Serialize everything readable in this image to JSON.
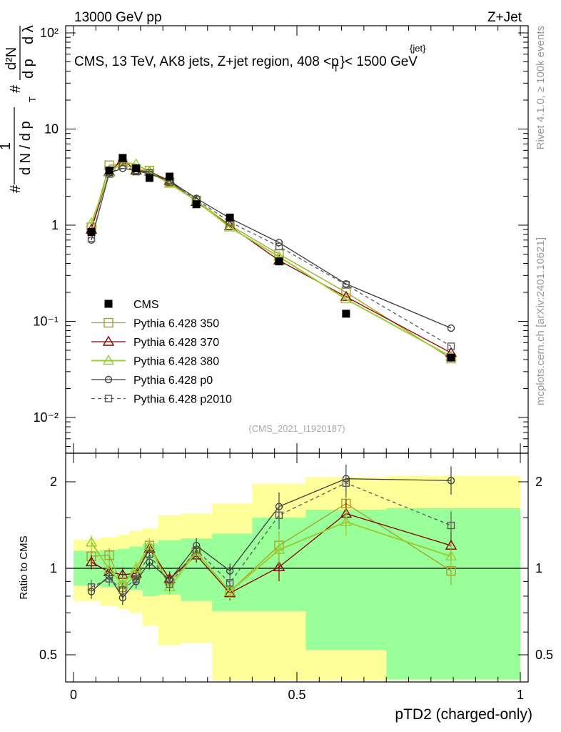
{
  "header": {
    "left": "13000 GeV pp",
    "right": "Z+Jet",
    "title_main": "CMS, 13 TeV, AK8 jets, Z+jet region, 408 <p",
    "title_sup": "{jet}",
    "title_sub": "T",
    "title_tail": "}< 1500 GeV",
    "watermark": "(CMS_2021_I1920187)",
    "side_rivet": "Rivet 4.1.0, ≥ 100k events",
    "side_mcplots": "mcplots.cern.ch [arXiv:2401.10621]"
  },
  "y_main_label": {
    "hash": "#",
    "one": "1",
    "dN": "d N / d p",
    "T": "T",
    "hash2": "#",
    "d2N": "d²N",
    "dpT": "d p",
    "dlambda": "d λ"
  },
  "ratio_label": "Ratio to CMS",
  "x_label": "pTD2 (charged-only)",
  "colors": {
    "cms": "#000000",
    "py350": "#a3a327",
    "py370": "#8b0000",
    "py380": "#9acd32",
    "p0": "#3d3d3d",
    "p2010": "#5a5a5a",
    "band_yellow": "#ffff99",
    "band_green": "#99ff99"
  },
  "legend": [
    {
      "label": "CMS",
      "key": "cms"
    },
    {
      "label": "Pythia 6.428 350",
      "key": "py350"
    },
    {
      "label": "Pythia 6.428 370",
      "key": "py370"
    },
    {
      "label": "Pythia 6.428 380",
      "key": "py380"
    },
    {
      "label": "Pythia 6.428 p0",
      "key": "p0"
    },
    {
      "label": "Pythia 6.428 p2010",
      "key": "p2010"
    }
  ],
  "chart_data": {
    "type": "line",
    "x_label": "pTD2 (charged-only)",
    "xlim": [
      0,
      1
    ],
    "main": {
      "yscale": "log",
      "ylim": [
        0.005,
        130
      ],
      "y_ticks": [
        "10⁻²",
        "10⁻¹",
        "1",
        "10",
        "10²"
      ],
      "x": [
        0.04,
        0.08,
        0.11,
        0.14,
        0.17,
        0.215,
        0.275,
        0.35,
        0.46,
        0.61,
        0.845
      ],
      "series": [
        {
          "name": "CMS",
          "key": "cms",
          "marker": "filled-square",
          "values": [
            0.85,
            3.7,
            5.0,
            3.9,
            3.1,
            3.2,
            1.65,
            1.2,
            0.42,
            0.12,
            0.042
          ]
        },
        {
          "name": "Pythia 6.428 350",
          "key": "py350",
          "marker": "open-square",
          "values": [
            0.95,
            4.2,
            4.3,
            3.8,
            3.7,
            2.8,
            1.8,
            1.0,
            0.5,
            0.2,
            0.041
          ]
        },
        {
          "name": "Pythia 6.428 370",
          "key": "py370",
          "marker": "open-triangle",
          "values": [
            0.9,
            3.6,
            4.8,
            3.7,
            3.6,
            2.9,
            1.75,
            0.98,
            0.43,
            0.18,
            0.047
          ]
        },
        {
          "name": "Pythia 6.428 380",
          "key": "py380",
          "marker": "open-triangle",
          "values": [
            1.05,
            3.5,
            4.5,
            4.3,
            3.6,
            2.7,
            1.8,
            0.95,
            0.47,
            0.17,
            0.043
          ]
        },
        {
          "name": "Pythia 6.428 p0",
          "key": "p0",
          "marker": "open-circle",
          "values": [
            0.7,
            3.5,
            3.9,
            3.7,
            3.4,
            2.9,
            1.9,
            1.18,
            0.66,
            0.245,
            0.085
          ]
        },
        {
          "name": "Pythia 6.428 p2010",
          "key": "p2010",
          "marker": "open-square-dashed",
          "values": [
            0.73,
            3.4,
            4.2,
            3.6,
            3.5,
            2.8,
            1.85,
            1.08,
            0.6,
            0.24,
            0.055
          ]
        }
      ]
    },
    "ratio": {
      "ylabel": "Ratio to CMS",
      "yscale": "log",
      "ylim": [
        0.43,
        2.3
      ],
      "y_ticks": [
        "0.5",
        "1",
        "2"
      ],
      "x_ticks": [
        "0",
        "0.5",
        "1"
      ],
      "bins": [
        0.0,
        0.06,
        0.1,
        0.125,
        0.155,
        0.19,
        0.24,
        0.31,
        0.4,
        0.52,
        0.7,
        1.0
      ],
      "band_yellow": [
        [
          0.77,
          1.26
        ],
        [
          0.74,
          1.28
        ],
        [
          0.72,
          1.31
        ],
        [
          0.7,
          1.35
        ],
        [
          0.63,
          1.38
        ],
        [
          0.54,
          1.53
        ],
        [
          0.55,
          1.55
        ],
        [
          0.4,
          1.68
        ],
        [
          0.4,
          1.97
        ],
        [
          0.4,
          2.08
        ],
        [
          0.4,
          2.1
        ]
      ],
      "band_green": [
        [
          0.87,
          1.15
        ],
        [
          0.86,
          1.16
        ],
        [
          0.85,
          1.17
        ],
        [
          0.84,
          1.19
        ],
        [
          0.8,
          1.22
        ],
        [
          0.81,
          1.25
        ],
        [
          0.77,
          1.27
        ],
        [
          0.71,
          1.32
        ],
        [
          0.71,
          1.5
        ],
        [
          0.52,
          1.6
        ],
        [
          0.41,
          1.62
        ]
      ],
      "series": [
        {
          "name": "Pythia 6.428 350",
          "key": "py350",
          "values": [
            1.1,
            1.11,
            0.86,
            0.95,
            1.2,
            0.91,
            1.14,
            0.83,
            1.2,
            1.68,
            0.98
          ]
        },
        {
          "name": "Pythia 6.428 370",
          "key": "py370",
          "values": [
            1.05,
            0.97,
            0.95,
            0.96,
            1.17,
            0.92,
            1.11,
            0.82,
            1.01,
            1.55,
            1.2
          ]
        },
        {
          "name": "Pythia 6.428 380",
          "key": "py380",
          "values": [
            1.23,
            0.99,
            0.88,
            1.0,
            1.2,
            0.86,
            1.14,
            0.83,
            1.16,
            1.45,
            1.1
          ]
        },
        {
          "name": "Pythia 6.428 p0",
          "key": "p0",
          "values": [
            0.83,
            0.94,
            0.79,
            0.9,
            1.05,
            0.91,
            1.2,
            0.98,
            1.64,
            2.05,
            2.02
          ]
        },
        {
          "name": "Pythia 6.428 p2010",
          "key": "p2010",
          "values": [
            0.86,
            0.92,
            0.84,
            0.92,
            1.12,
            0.88,
            1.16,
            0.89,
            1.53,
            1.98,
            1.41
          ]
        }
      ]
    }
  }
}
